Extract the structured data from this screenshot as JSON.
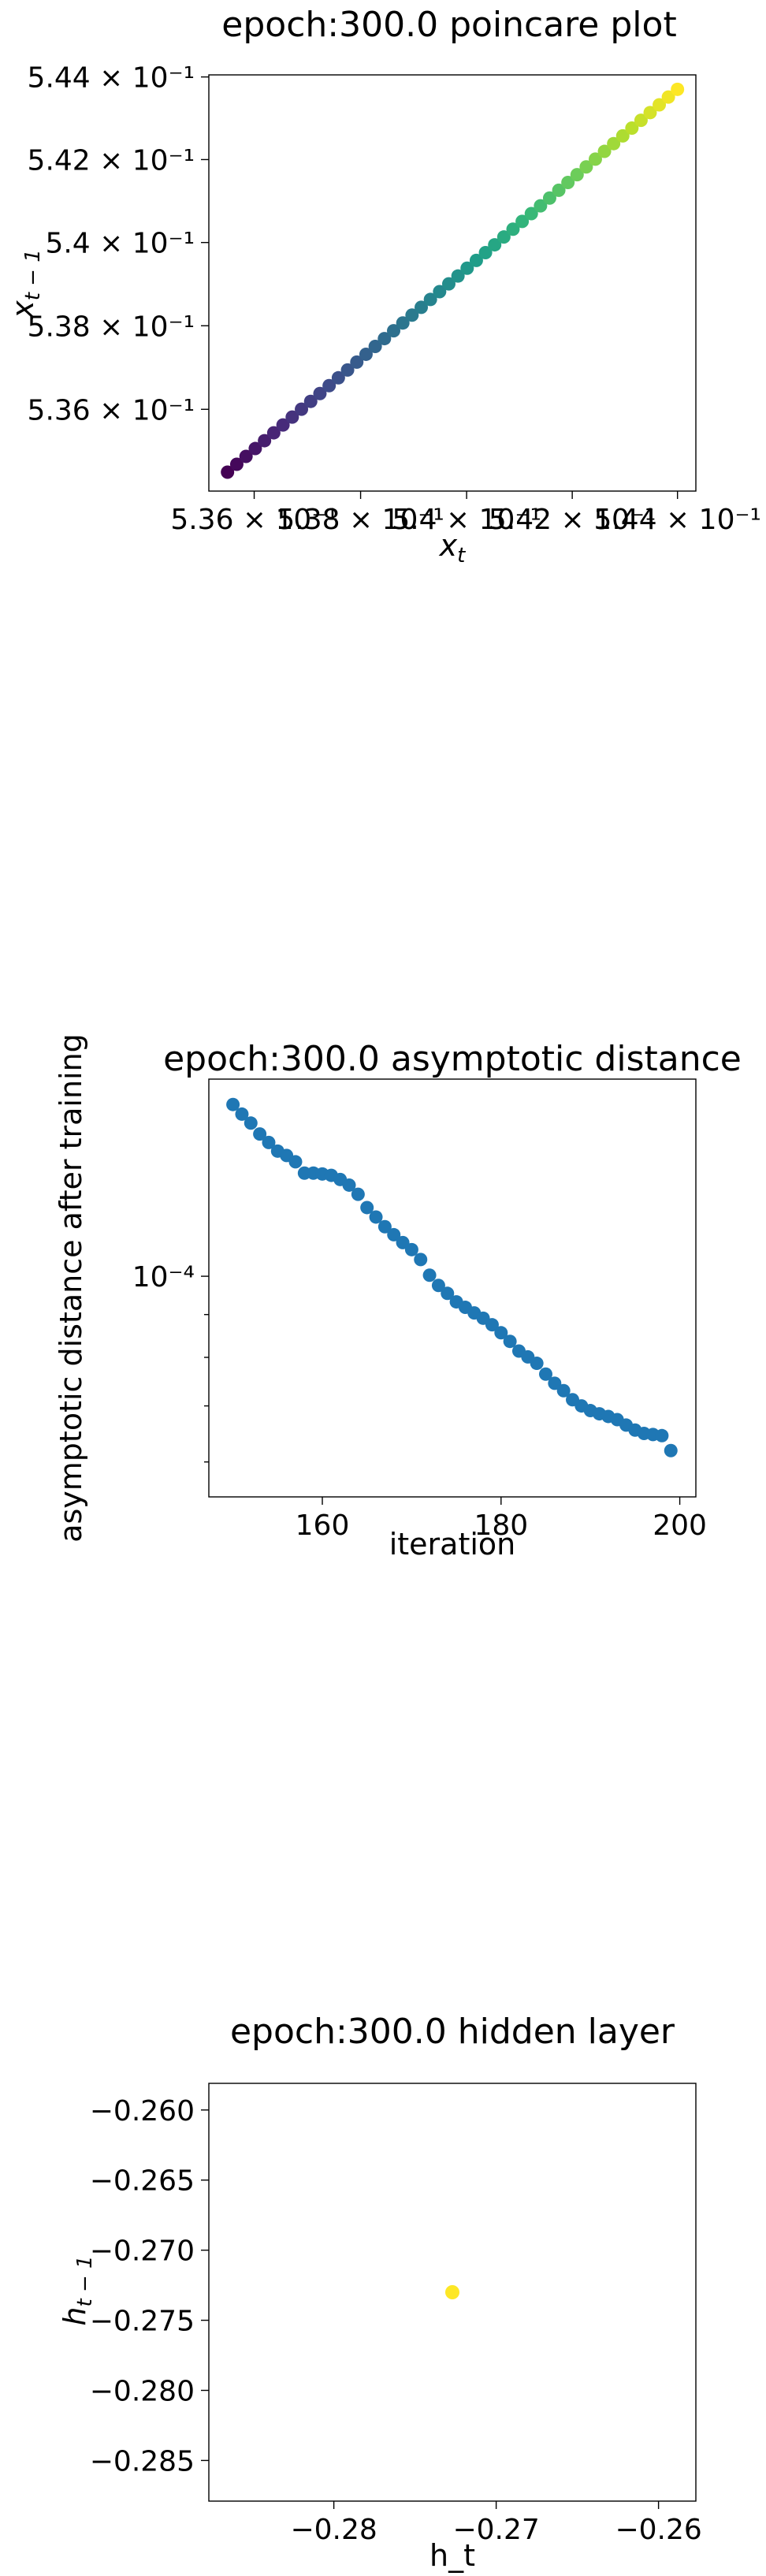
{
  "chart_data": [
    {
      "type": "scatter",
      "title": "epoch:300.0 poincare plot",
      "xlabel": "x_t",
      "ylabel": "x_{t-1}",
      "x_scale": "log",
      "y_scale": "log",
      "xlim": [
        0.53515,
        0.54435
      ],
      "ylim": [
        0.53405,
        0.54405
      ],
      "x_tick_values": [
        0.536,
        0.538,
        0.54,
        0.542,
        0.544
      ],
      "x_tick_labels": [
        "5.36 × 10⁻¹",
        "5.38 × 10⁻¹",
        "5.4 × 10⁻¹",
        "5.42 × 10⁻¹",
        "5.44 × 10⁻¹"
      ],
      "y_tick_values": [
        0.536,
        0.538,
        0.54,
        0.542,
        0.544
      ],
      "y_tick_labels": [
        "5.36 × 10⁻¹",
        "5.38 × 10⁻¹",
        "5.4 × 10⁻¹",
        "5.42 × 10⁻¹",
        "5.44 × 10⁻¹"
      ],
      "colormap": "viridis",
      "color_order": "by point index",
      "points_count": 50,
      "x_start": 0.5355,
      "x_end": 0.544,
      "y_start": 0.5345,
      "y_end": 0.5437
    },
    {
      "type": "scatter",
      "title": "epoch:300.0 asymptotic distance",
      "xlabel": "iteration",
      "ylabel": "asymptotic distance after training",
      "y_scale": "log",
      "xlim": [
        147.3,
        201.8
      ],
      "ylim": [
        5.45e-05,
        0.000172
      ],
      "x_tick_values": [
        160,
        180,
        200
      ],
      "x_tick_labels": [
        "160",
        "180",
        "200"
      ],
      "y_tick_values": [
        0.0001
      ],
      "y_tick_labels": [
        "10⁻⁴"
      ],
      "marker_color": "#1f77b4",
      "x": [
        150,
        151,
        152,
        153,
        154,
        155,
        156,
        157,
        158,
        159,
        160,
        161,
        162,
        163,
        164,
        165,
        166,
        167,
        168,
        169,
        170,
        171,
        172,
        173,
        174,
        175,
        176,
        177,
        178,
        179,
        180,
        181,
        182,
        183,
        184,
        185,
        186,
        187,
        188,
        189,
        190,
        191,
        192,
        193,
        194,
        195,
        196,
        197,
        198,
        199
      ],
      "y": [
        0.0001604,
        0.0001562,
        0.0001524,
        0.0001479,
        0.0001445,
        0.0001411,
        0.0001394,
        0.000137,
        0.0001328,
        0.0001328,
        0.0001325,
        0.000132,
        0.0001305,
        0.0001285,
        0.0001253,
        0.0001208,
        0.0001177,
        0.0001146,
        0.0001121,
        0.0001097,
        0.0001076,
        0.0001047,
        0.0001003,
        9.75e-05,
        9.54e-05,
        9.32e-05,
        9.18e-05,
        9.04e-05,
        8.91e-05,
        8.75e-05,
        8.56e-05,
        8.36e-05,
        8.14e-05,
        8.01e-05,
        7.87e-05,
        7.64e-05,
        7.45e-05,
        7.3e-05,
        7.12e-05,
        7e-05,
        6.91e-05,
        6.85e-05,
        6.8e-05,
        6.74e-05,
        6.64e-05,
        6.55e-05,
        6.49e-05,
        6.47e-05,
        6.45e-05,
        6.19e-05
      ]
    },
    {
      "type": "scatter",
      "title": "epoch:300.0 hidden layer",
      "xlabel": "h_t",
      "ylabel": "h_{t-1}",
      "xlim": [
        -0.2877,
        -0.2577
      ],
      "ylim": [
        -0.2879,
        -0.2581
      ],
      "x_tick_values": [
        -0.28,
        -0.27,
        -0.26
      ],
      "x_tick_labels": [
        "−0.28",
        "−0.27",
        "−0.26"
      ],
      "y_tick_values": [
        -0.26,
        -0.265,
        -0.27,
        -0.275,
        -0.28,
        -0.285
      ],
      "y_tick_labels": [
        "−0.260",
        "−0.265",
        "−0.270",
        "−0.275",
        "−0.280",
        "−0.285"
      ],
      "marker_color": "#fde725",
      "x": [
        -0.2727
      ],
      "y": [
        -0.273
      ]
    }
  ]
}
